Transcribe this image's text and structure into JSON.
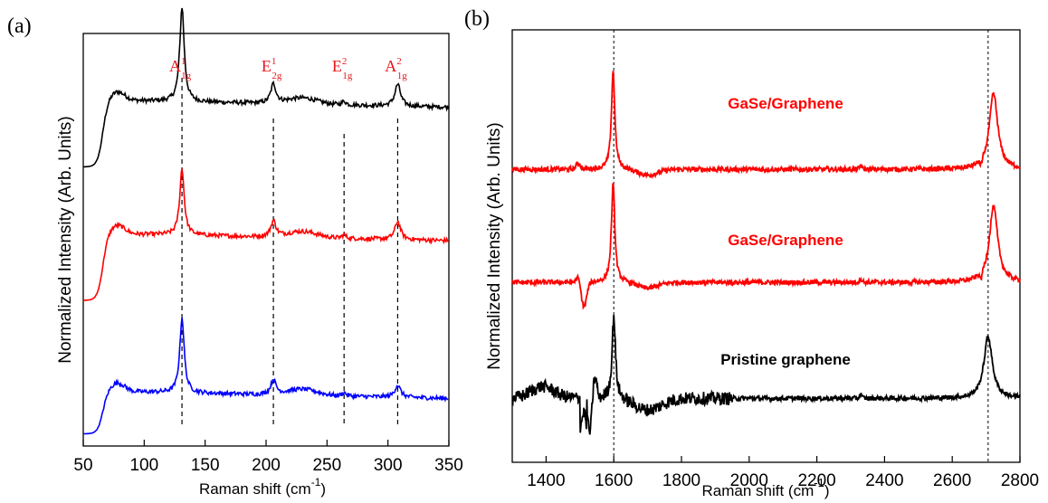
{
  "chart_data": [
    {
      "panel": "(a)",
      "type": "line",
      "xlabel": "Raman shift (cm",
      "xlabel_sup": "-1",
      "xlabel_close": ")",
      "ylabel": "Normalized Intensity (Arb. Units)",
      "xlim": [
        50,
        350
      ],
      "x_ticks": [
        50,
        100,
        150,
        200,
        250,
        300,
        350
      ],
      "peaks": [
        {
          "main": "A",
          "sup": "1",
          "sub": "1g",
          "x": 131,
          "color": "#e8141c"
        },
        {
          "main": "E",
          "sup": "1",
          "sub": "2g",
          "x": 206,
          "color": "#e8141c"
        },
        {
          "main": "E",
          "sup": "2",
          "sub": "1g",
          "x": 264,
          "color": "#e8141c"
        },
        {
          "main": "A",
          "sup": "2",
          "sub": "1g",
          "x": 308,
          "color": "#e8141c"
        }
      ],
      "series": [
        {
          "color": "#000000",
          "offset": 2.2,
          "base": 0.55,
          "peakAmp": [
            0.78,
            0.16,
            0.03,
            0.18
          ]
        },
        {
          "color": "#ff0000",
          "offset": 1.1,
          "base": 0.55,
          "peakAmp": [
            0.55,
            0.13,
            0.03,
            0.15
          ]
        },
        {
          "color": "#0000ff",
          "offset": 0.0,
          "base": 0.35,
          "peakAmp": [
            0.62,
            0.12,
            0.03,
            0.1
          ]
        }
      ]
    },
    {
      "panel": "(b)",
      "type": "line",
      "xlabel": "Raman shift (cm",
      "xlabel_sup": "-1",
      "xlabel_close": ")",
      "ylabel": "Normalized Intensity (Arb. Units)",
      "xlim": [
        1300,
        2800
      ],
      "x_ticks": [
        1400,
        1600,
        1800,
        2000,
        2200,
        2400,
        2600,
        2800
      ],
      "vlines": [
        1600,
        2706
      ],
      "series": [
        {
          "name": "GaSe/Graphene",
          "color": "#ff0000",
          "offset": 2.3,
          "G": 1598,
          "G2D": 2722,
          "Gamp": 1.0,
          "Damp": 0.77
        },
        {
          "name": "GaSe/Graphene",
          "color": "#ff0000",
          "offset": 1.15,
          "G": 1598,
          "G2D": 2722,
          "Gamp": 1.0,
          "Damp": 0.77
        },
        {
          "name": "Pristine graphene",
          "color": "#000000",
          "offset": 0.0,
          "G": 1600,
          "G2D": 2706,
          "Gamp": 0.85,
          "Damp": 0.63
        }
      ]
    }
  ]
}
